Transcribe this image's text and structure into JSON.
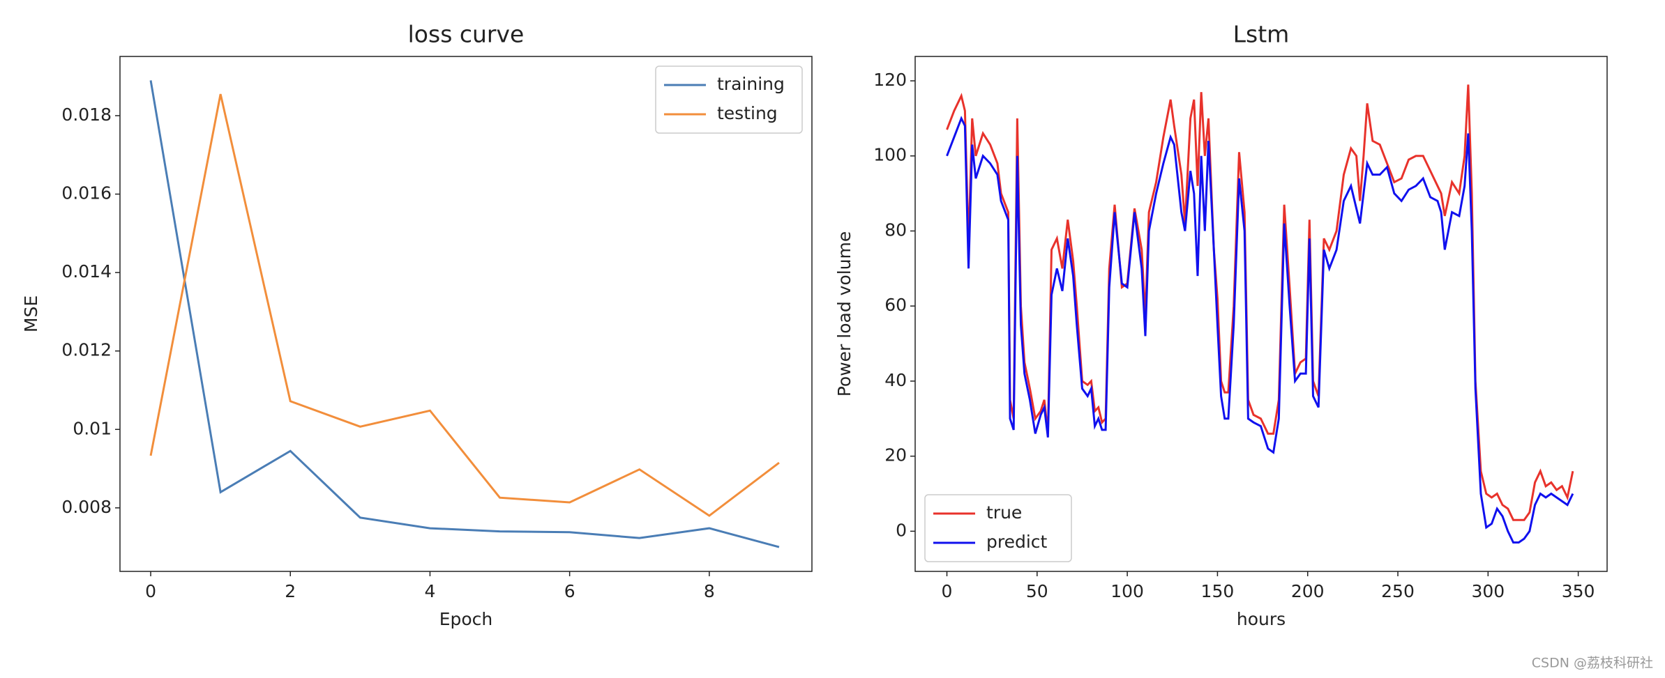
{
  "chart_data": [
    {
      "type": "line",
      "title": "loss curve",
      "xlabel": "Epoch",
      "ylabel": "MSE",
      "x": [
        0,
        1,
        2,
        3,
        4,
        5,
        6,
        7,
        8,
        9
      ],
      "series": [
        {
          "name": "training",
          "color": "#4a7db5",
          "values": [
            0.0189,
            0.0084,
            0.00945,
            0.00775,
            0.00748,
            0.0074,
            0.00738,
            0.00723,
            0.00748,
            0.007
          ]
        },
        {
          "name": "testing",
          "color": "#f28e3b",
          "values": [
            0.00933,
            0.01855,
            0.01072,
            0.01007,
            0.01048,
            0.00826,
            0.00814,
            0.00898,
            0.0078,
            0.00915
          ]
        }
      ],
      "xlim": [
        -0.44,
        9.47
      ],
      "ylim": [
        0.00638,
        0.01951
      ],
      "xticks": [
        0,
        2,
        4,
        6,
        8
      ],
      "yticks": [
        0.008,
        0.01,
        0.012,
        0.014,
        0.016,
        0.018
      ],
      "legend": "upper right"
    },
    {
      "type": "line",
      "title": "Lstm",
      "xlabel": "hours",
      "ylabel": "Power load volume",
      "x": [
        0,
        4,
        8,
        10,
        12,
        14,
        16,
        20,
        24,
        28,
        30,
        34,
        35,
        37,
        39,
        41,
        43,
        46,
        49,
        52,
        54,
        56,
        58,
        61,
        64,
        67,
        70,
        72,
        75,
        78,
        80,
        82,
        84,
        86,
        88,
        90,
        93,
        97,
        100,
        104,
        108,
        110,
        112,
        116,
        120,
        124,
        126,
        130,
        132,
        135,
        137,
        139,
        141,
        143,
        145,
        148,
        150,
        152,
        154,
        156,
        159,
        162,
        165,
        167,
        170,
        174,
        178,
        181,
        184,
        187,
        190,
        193,
        196,
        199,
        201,
        203,
        206,
        209,
        212,
        216,
        220,
        224,
        227,
        229,
        231,
        233,
        236,
        240,
        244,
        248,
        252,
        256,
        260,
        264,
        268,
        272,
        274,
        276,
        280,
        284,
        287,
        289,
        291,
        293,
        296,
        299,
        302,
        305,
        308,
        311,
        314,
        317,
        320,
        323,
        326,
        329,
        332,
        335,
        338,
        341,
        344,
        347
      ],
      "series": [
        {
          "name": "true",
          "color": "#e8322b",
          "values": [
            107,
            112,
            116,
            112,
            76,
            110,
            100,
            106,
            103,
            98,
            90,
            85,
            35,
            30,
            110,
            60,
            45,
            38,
            30,
            32,
            35,
            26,
            75,
            78,
            70,
            83,
            72,
            60,
            40,
            39,
            40,
            32,
            33,
            29,
            30,
            70,
            87,
            65,
            66,
            86,
            75,
            57,
            85,
            93,
            105,
            115,
            108,
            95,
            82,
            110,
            115,
            92,
            117,
            100,
            110,
            75,
            62,
            40,
            37,
            37,
            60,
            101,
            85,
            35,
            31,
            30,
            26,
            26,
            35,
            87,
            65,
            42,
            45,
            46,
            83,
            40,
            36,
            78,
            75,
            80,
            95,
            102,
            100,
            88,
            100,
            114,
            104,
            103,
            98,
            93,
            94,
            99,
            100,
            100,
            96,
            92,
            90,
            84,
            93,
            90,
            100,
            119,
            90,
            40,
            16,
            10,
            9,
            10,
            7,
            6,
            3,
            3,
            3,
            5,
            13,
            16,
            12,
            13,
            11,
            12,
            9,
            16
          ]
        },
        {
          "name": "predict",
          "color": "#1010ee",
          "values": [
            100,
            105,
            110,
            108,
            70,
            103,
            94,
            100,
            98,
            95,
            88,
            83,
            30,
            27,
            100,
            55,
            42,
            35,
            26,
            31,
            33,
            25,
            63,
            70,
            64,
            78,
            68,
            55,
            38,
            36,
            38,
            28,
            30,
            27,
            27,
            65,
            85,
            66,
            65,
            85,
            70,
            52,
            80,
            90,
            98,
            105,
            103,
            85,
            80,
            96,
            90,
            68,
            100,
            80,
            104,
            75,
            55,
            36,
            30,
            30,
            55,
            94,
            80,
            30,
            29,
            28,
            22,
            21,
            30,
            82,
            60,
            40,
            42,
            42,
            78,
            36,
            33,
            75,
            70,
            75,
            88,
            92,
            86,
            82,
            90,
            98,
            95,
            95,
            97,
            90,
            88,
            91,
            92,
            94,
            89,
            88,
            85,
            75,
            85,
            84,
            92,
            106,
            80,
            38,
            10,
            1,
            2,
            6,
            4,
            0,
            -3,
            -3,
            -2,
            0,
            7,
            10,
            9,
            10,
            9,
            8,
            7,
            10
          ]
        }
      ],
      "xlim": [
        -17.6,
        366
      ],
      "ylim": [
        -10.7,
        126.5
      ],
      "xticks": [
        0,
        50,
        100,
        150,
        200,
        250,
        300,
        350
      ],
      "yticks": [
        0,
        20,
        40,
        60,
        80,
        100,
        120
      ],
      "legend": "lower left"
    }
  ],
  "watermark": "CSDN @荔枝科研社"
}
